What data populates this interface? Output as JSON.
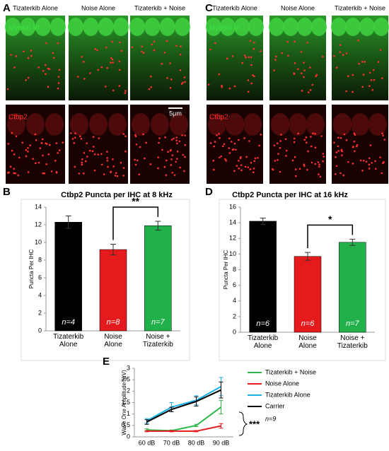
{
  "panel_labels": [
    "A",
    "B",
    "C",
    "D",
    "E"
  ],
  "images": [
    {
      "columns": [
        "Tizaterkib Alone",
        "Noise Alone",
        "Tizaterkib + Noise"
      ],
      "rows": [
        "Myosin VI",
        "Ctbp2"
      ],
      "scale_bar": "5μm"
    },
    {
      "columns": [
        "Tizaterkib Alone",
        "Noise Alone",
        "Tizaterkib + Noise"
      ],
      "rows": [
        "Myosin VI",
        "Ctbp2"
      ]
    }
  ],
  "chart_data": [
    {
      "type": "bar",
      "title": "Ctbp2 Puncta per IHC at 8 kHz",
      "y_label": "Puncta Per IHC",
      "categories": [
        "Tizaterkib\nAlone",
        "Noise\nAlone",
        "Noise +\nTizaterkib"
      ],
      "values": [
        12.3,
        9.2,
        11.9
      ],
      "errors": [
        0.7,
        0.6,
        0.5
      ],
      "colors": [
        "#000000",
        "#e41a1c",
        "#22b04b"
      ],
      "n_labels": [
        "n=4",
        "n=8",
        "n=7"
      ],
      "significance": "**",
      "ylim": [
        0,
        14
      ],
      "yticks": [
        0,
        2,
        4,
        6,
        8,
        10,
        12,
        14
      ]
    },
    {
      "type": "bar",
      "title": "Ctbp2 Puncta per IHC at 16 kHz",
      "y_label": "Puncta Per IHC",
      "categories": [
        "Tizaterkib\nAlone",
        "Noise\nAlone",
        "Noise +\nTizaterkib"
      ],
      "values": [
        14.2,
        9.7,
        11.5
      ],
      "errors": [
        0.4,
        0.5,
        0.4
      ],
      "colors": [
        "#000000",
        "#e41a1c",
        "#22b04b"
      ],
      "n_labels": [
        "n=6",
        "n=6",
        "n=7"
      ],
      "significance": "*",
      "ylim": [
        0,
        16
      ],
      "yticks": [
        0,
        2,
        4,
        6,
        8,
        10,
        12,
        14,
        16
      ]
    },
    {
      "type": "line",
      "y_label": "Wave One Amplitude (μV)",
      "categories": [
        "60 dB",
        "70 dB",
        "80 dB",
        "90 dB"
      ],
      "series": [
        {
          "name": "Tizaterkib + Noise",
          "color": "#2eb84b",
          "values": [
            0.3,
            0.27,
            0.5,
            1.3
          ],
          "errors": [
            0.05,
            0.03,
            0.05,
            0.3
          ]
        },
        {
          "name": "Noise Alone",
          "color": "#e41a1c",
          "values": [
            0.25,
            0.25,
            0.25,
            0.48
          ],
          "errors": [
            0.03,
            0.03,
            0.03,
            0.1
          ]
        },
        {
          "name": "Tizaterkib Alone",
          "color": "#1ab0e8",
          "values": [
            0.7,
            1.3,
            1.6,
            2.2
          ],
          "errors": [
            0.1,
            0.2,
            0.2,
            0.4
          ]
        },
        {
          "name": "Carrier",
          "color": "#000000",
          "values": [
            0.65,
            1.2,
            1.55,
            2.05
          ],
          "errors": [
            0.1,
            0.1,
            0.2,
            0.35
          ]
        }
      ],
      "n_label": "n=9",
      "significance": "***",
      "ylim": [
        0,
        3
      ],
      "yticks": [
        0,
        0.5,
        1,
        1.5,
        2,
        2.5,
        3
      ]
    }
  ]
}
